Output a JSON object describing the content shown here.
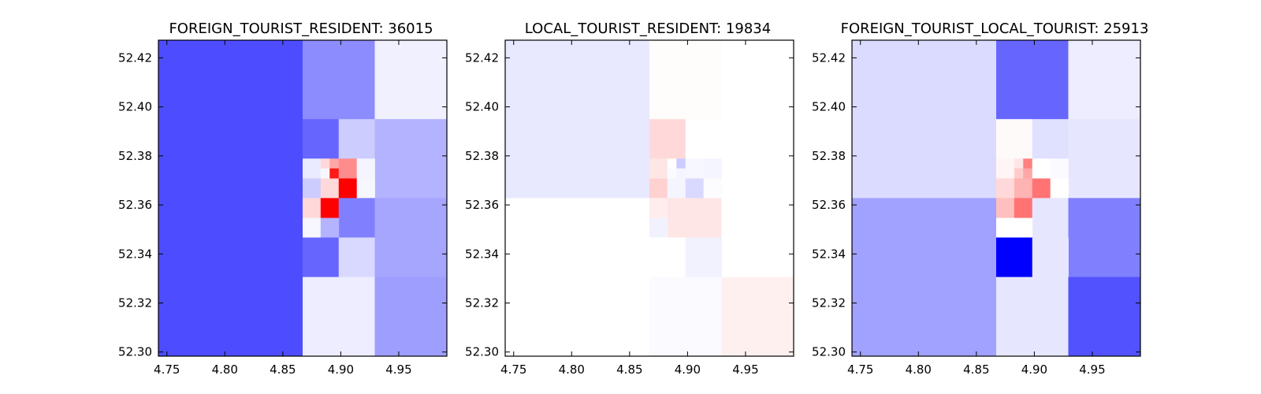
{
  "chart_data": [
    {
      "type": "heatmap",
      "title": "FOREIGN_TOURIST_RESIDENT: 36015",
      "xlim": [
        4.7427,
        4.9915
      ],
      "ylim": [
        52.2983,
        52.4272
      ],
      "xticks": [
        "4.75",
        "4.80",
        "4.85",
        "4.90",
        "4.95"
      ],
      "yticks": [
        "52.30",
        "52.32",
        "52.34",
        "52.36",
        "52.38",
        "52.40",
        "52.42"
      ],
      "grid": false,
      "cells": [
        {
          "x": [
            4.7427,
            4.8671
          ],
          "y": [
            52.2983,
            52.4272
          ],
          "v": -0.7
        },
        {
          "x": [
            4.8671,
            4.9293
          ],
          "y": [
            52.395,
            52.4272
          ],
          "v": -0.45
        },
        {
          "x": [
            4.9293,
            4.9915
          ],
          "y": [
            52.395,
            52.4272
          ],
          "v": -0.06
        },
        {
          "x": [
            4.8671,
            4.8982
          ],
          "y": [
            52.3789,
            52.395
          ],
          "v": -0.6
        },
        {
          "x": [
            4.8982,
            4.9293
          ],
          "y": [
            52.3789,
            52.395
          ],
          "v": -0.2
        },
        {
          "x": [
            4.9293,
            4.9915
          ],
          "y": [
            52.3628,
            52.395
          ],
          "v": -0.3
        },
        {
          "x": [
            4.8671,
            4.8826
          ],
          "y": [
            52.3708,
            52.3789
          ],
          "v": -0.08
        },
        {
          "x": [
            4.8826,
            4.8904
          ],
          "y": [
            52.3749,
            52.3789
          ],
          "v": 0.15
        },
        {
          "x": [
            4.8826,
            4.8904
          ],
          "y": [
            52.3708,
            52.3749
          ],
          "v": -0.03
        },
        {
          "x": [
            4.8904,
            4.8982
          ],
          "y": [
            52.3749,
            52.3789
          ],
          "v": 0.35
        },
        {
          "x": [
            4.8904,
            4.8982
          ],
          "y": [
            52.3708,
            52.3749
          ],
          "v": 0.9
        },
        {
          "x": [
            4.8982,
            4.9138
          ],
          "y": [
            52.3708,
            52.3789
          ],
          "v": 0.45
        },
        {
          "x": [
            4.9138,
            4.9293
          ],
          "y": [
            52.3708,
            52.3789
          ],
          "v": -0.04
        },
        {
          "x": [
            4.8671,
            4.8826
          ],
          "y": [
            52.3628,
            52.3708
          ],
          "v": -0.2
        },
        {
          "x": [
            4.8826,
            4.8982
          ],
          "y": [
            52.3628,
            52.3708
          ],
          "v": 0.15
        },
        {
          "x": [
            4.8982,
            4.9138
          ],
          "y": [
            52.3628,
            52.3708
          ],
          "v": 1.0
        },
        {
          "x": [
            4.9138,
            4.9293
          ],
          "y": [
            52.3628,
            52.3708
          ],
          "v": -0.03
        },
        {
          "x": [
            4.8671,
            4.8826
          ],
          "y": [
            52.3547,
            52.3628
          ],
          "v": 0.15
        },
        {
          "x": [
            4.8826,
            4.8982
          ],
          "y": [
            52.3547,
            52.3628
          ],
          "v": 1.0
        },
        {
          "x": [
            4.8982,
            4.9293
          ],
          "y": [
            52.3467,
            52.3628
          ],
          "v": -0.5
        },
        {
          "x": [
            4.9293,
            4.9915
          ],
          "y": [
            52.3467,
            52.3628
          ],
          "v": -0.35
        },
        {
          "x": [
            4.8671,
            4.8826
          ],
          "y": [
            52.3467,
            52.3547
          ],
          "v": -0.03
        },
        {
          "x": [
            4.8826,
            4.8982
          ],
          "y": [
            52.3467,
            52.3547
          ],
          "v": -0.3
        },
        {
          "x": [
            4.8671,
            4.8982
          ],
          "y": [
            52.3306,
            52.3467
          ],
          "v": -0.6
        },
        {
          "x": [
            4.8982,
            4.9293
          ],
          "y": [
            52.3306,
            52.3467
          ],
          "v": -0.15
        },
        {
          "x": [
            4.9293,
            4.9915
          ],
          "y": [
            52.3306,
            52.3467
          ],
          "v": -0.35
        },
        {
          "x": [
            4.8671,
            4.9293
          ],
          "y": [
            52.2983,
            52.3306
          ],
          "v": -0.07
        },
        {
          "x": [
            4.9293,
            4.9915
          ],
          "y": [
            52.2983,
            52.3306
          ],
          "v": -0.38
        }
      ]
    },
    {
      "type": "heatmap",
      "title": "LOCAL_TOURIST_RESIDENT: 19834",
      "xlim": [
        4.7427,
        4.9915
      ],
      "ylim": [
        52.2983,
        52.4272
      ],
      "xticks": [
        "4.75",
        "4.80",
        "4.85",
        "4.90",
        "4.95"
      ],
      "yticks": [
        "52.30",
        "52.32",
        "52.34",
        "52.36",
        "52.38",
        "52.40",
        "52.42"
      ],
      "grid": false,
      "cells": [
        {
          "x": [
            4.7427,
            4.8671
          ],
          "y": [
            52.3628,
            52.4272
          ],
          "v": -0.09
        },
        {
          "x": [
            4.8671,
            4.9293
          ],
          "y": [
            52.395,
            52.4272
          ],
          "v": 0.01
        },
        {
          "x": [
            4.9293,
            4.9915
          ],
          "y": [
            52.395,
            52.4272
          ],
          "v": 0.0
        },
        {
          "x": [
            4.8671,
            4.8982
          ],
          "y": [
            52.3789,
            52.395
          ],
          "v": 0.15
        },
        {
          "x": [
            4.8982,
            4.9293
          ],
          "y": [
            52.3789,
            52.395
          ],
          "v": 0.0
        },
        {
          "x": [
            4.9293,
            4.9915
          ],
          "y": [
            52.3628,
            52.395
          ],
          "v": 0.0
        },
        {
          "x": [
            4.8671,
            4.8826
          ],
          "y": [
            52.3708,
            52.3789
          ],
          "v": 0.1
        },
        {
          "x": [
            4.8826,
            4.8904
          ],
          "y": [
            52.3749,
            52.3789
          ],
          "v": 0.0
        },
        {
          "x": [
            4.8826,
            4.8904
          ],
          "y": [
            52.3708,
            52.3749
          ],
          "v": -0.02
        },
        {
          "x": [
            4.8904,
            4.8982
          ],
          "y": [
            52.3749,
            52.3789
          ],
          "v": -0.2
        },
        {
          "x": [
            4.8904,
            4.8982
          ],
          "y": [
            52.3708,
            52.3749
          ],
          "v": -0.04
        },
        {
          "x": [
            4.8982,
            4.9138
          ],
          "y": [
            52.3708,
            52.3789
          ],
          "v": -0.03
        },
        {
          "x": [
            4.9138,
            4.9293
          ],
          "y": [
            52.3708,
            52.3789
          ],
          "v": -0.04
        },
        {
          "x": [
            4.8671,
            4.8826
          ],
          "y": [
            52.3628,
            52.3708
          ],
          "v": 0.18
        },
        {
          "x": [
            4.8826,
            4.8982
          ],
          "y": [
            52.3628,
            52.3708
          ],
          "v": -0.04
        },
        {
          "x": [
            4.8982,
            4.9138
          ],
          "y": [
            52.3628,
            52.3708
          ],
          "v": -0.15
        },
        {
          "x": [
            4.9138,
            4.9293
          ],
          "y": [
            52.3628,
            52.3708
          ],
          "v": -0.01
        },
        {
          "x": [
            4.7427,
            4.8671
          ],
          "y": [
            52.2983,
            52.3628
          ],
          "v": 0.0
        },
        {
          "x": [
            4.8671,
            4.8826
          ],
          "y": [
            52.3547,
            52.3628
          ],
          "v": 0.07
        },
        {
          "x": [
            4.8826,
            4.9293
          ],
          "y": [
            52.3467,
            52.3628
          ],
          "v": 0.1
        },
        {
          "x": [
            4.8671,
            4.8826
          ],
          "y": [
            52.3467,
            52.3547
          ],
          "v": -0.05
        },
        {
          "x": [
            4.9293,
            4.9915
          ],
          "y": [
            52.3306,
            52.3628
          ],
          "v": 0.0
        },
        {
          "x": [
            4.8671,
            4.8982
          ],
          "y": [
            52.3306,
            52.3467
          ],
          "v": 0.0
        },
        {
          "x": [
            4.8982,
            4.9293
          ],
          "y": [
            52.3306,
            52.3467
          ],
          "v": -0.05
        },
        {
          "x": [
            4.8671,
            4.9293
          ],
          "y": [
            52.2983,
            52.3306
          ],
          "v": -0.02
        },
        {
          "x": [
            4.9293,
            4.9915
          ],
          "y": [
            52.2983,
            52.3306
          ],
          "v": 0.06
        }
      ]
    },
    {
      "type": "heatmap",
      "title": "FOREIGN_TOURIST_LOCAL_TOURIST: 25913",
      "xlim": [
        4.7427,
        4.9915
      ],
      "ylim": [
        52.2983,
        52.4272
      ],
      "xticks": [
        "4.75",
        "4.80",
        "4.85",
        "4.90",
        "4.95"
      ],
      "yticks": [
        "52.30",
        "52.32",
        "52.34",
        "52.36",
        "52.38",
        "52.40",
        "52.42"
      ],
      "grid": false,
      "cells": [
        {
          "x": [
            4.7427,
            4.8671
          ],
          "y": [
            52.3628,
            52.4272
          ],
          "v": -0.14
        },
        {
          "x": [
            4.8671,
            4.9293
          ],
          "y": [
            52.395,
            52.4272
          ],
          "v": -0.6
        },
        {
          "x": [
            4.9293,
            4.9915
          ],
          "y": [
            52.395,
            52.4272
          ],
          "v": -0.07
        },
        {
          "x": [
            4.8671,
            4.8982
          ],
          "y": [
            52.3789,
            52.395
          ],
          "v": 0.02
        },
        {
          "x": [
            4.8982,
            4.9293
          ],
          "y": [
            52.3789,
            52.395
          ],
          "v": -0.12
        },
        {
          "x": [
            4.9293,
            4.9915
          ],
          "y": [
            52.3628,
            52.395
          ],
          "v": -0.1
        },
        {
          "x": [
            4.8671,
            4.8826
          ],
          "y": [
            52.3708,
            52.3789
          ],
          "v": 0.04
        },
        {
          "x": [
            4.8826,
            4.8904
          ],
          "y": [
            52.3749,
            52.3789
          ],
          "v": 0.1
        },
        {
          "x": [
            4.8826,
            4.8904
          ],
          "y": [
            52.3708,
            52.3749
          ],
          "v": 0.2
        },
        {
          "x": [
            4.8904,
            4.8982
          ],
          "y": [
            52.3749,
            52.3789
          ],
          "v": 0.5
        },
        {
          "x": [
            4.8904,
            4.8982
          ],
          "y": [
            52.3708,
            52.3749
          ],
          "v": 0.35
        },
        {
          "x": [
            4.8982,
            4.9138
          ],
          "y": [
            52.3708,
            52.3789
          ],
          "v": 0.0
        },
        {
          "x": [
            4.9138,
            4.9293
          ],
          "y": [
            52.3708,
            52.3789
          ],
          "v": -0.02
        },
        {
          "x": [
            4.8671,
            4.8826
          ],
          "y": [
            52.3628,
            52.3708
          ],
          "v": 0.15
        },
        {
          "x": [
            4.8826,
            4.8982
          ],
          "y": [
            52.3628,
            52.3708
          ],
          "v": 0.3
        },
        {
          "x": [
            4.8982,
            4.9138
          ],
          "y": [
            52.3628,
            52.3708
          ],
          "v": 0.55
        },
        {
          "x": [
            4.9138,
            4.9293
          ],
          "y": [
            52.3628,
            52.3708
          ],
          "v": 0.0
        },
        {
          "x": [
            4.7427,
            4.8671
          ],
          "y": [
            52.2983,
            52.3628
          ],
          "v": -0.37
        },
        {
          "x": [
            4.8671,
            4.8826
          ],
          "y": [
            52.3547,
            52.3628
          ],
          "v": 0.25
        },
        {
          "x": [
            4.8826,
            4.8982
          ],
          "y": [
            52.3547,
            52.3628
          ],
          "v": 0.55
        },
        {
          "x": [
            4.8982,
            4.9293
          ],
          "y": [
            52.3467,
            52.3628
          ],
          "v": -0.1
        },
        {
          "x": [
            4.9293,
            4.9915
          ],
          "y": [
            52.3306,
            52.3628
          ],
          "v": -0.5
        },
        {
          "x": [
            4.8671,
            4.8982
          ],
          "y": [
            52.3467,
            52.3547
          ],
          "v": 0.0
        },
        {
          "x": [
            4.8671,
            4.8982
          ],
          "y": [
            52.3306,
            52.3467
          ],
          "v": -1.0
        },
        {
          "x": [
            4.8982,
            4.9293
          ],
          "y": [
            52.3306,
            52.3467
          ],
          "v": -0.1
        },
        {
          "x": [
            4.8671,
            4.9293
          ],
          "y": [
            52.2983,
            52.3306
          ],
          "v": -0.1
        },
        {
          "x": [
            4.9293,
            4.9915
          ],
          "y": [
            52.2983,
            52.3306
          ],
          "v": -0.68
        }
      ]
    }
  ]
}
